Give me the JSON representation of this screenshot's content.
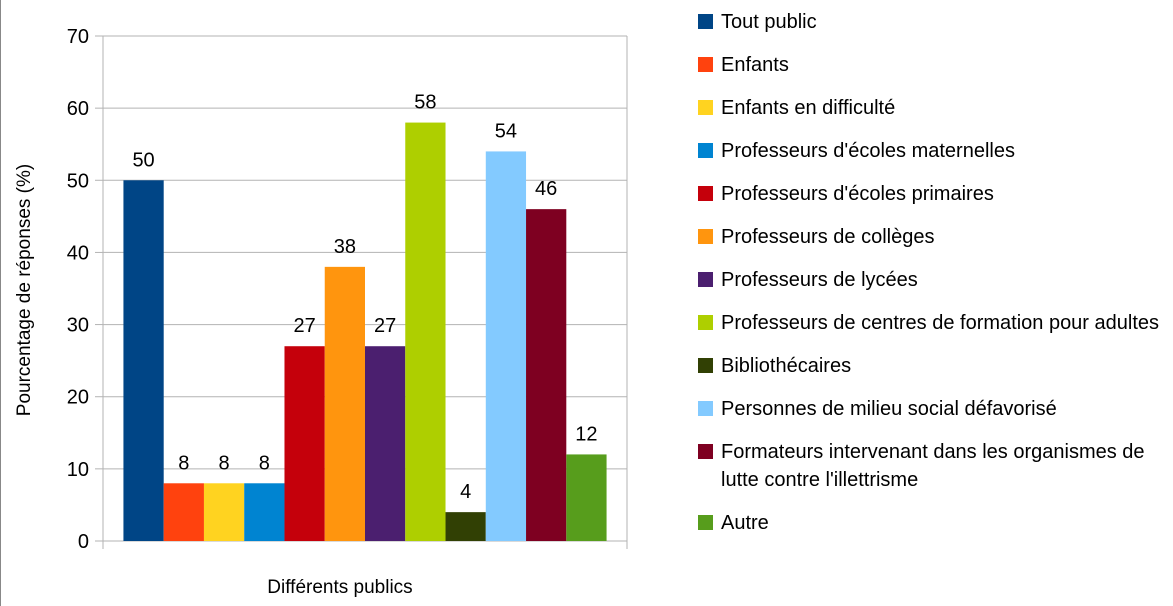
{
  "chart_data": {
    "type": "bar",
    "categories": [
      "Différents publics"
    ],
    "x_label": "Différents publics",
    "y_label": "Pourcentage de réponses (%)",
    "ylim": [
      0,
      70
    ],
    "yticks": [
      0,
      10,
      20,
      30,
      40,
      50,
      60,
      70
    ],
    "grid": true,
    "legend": "right",
    "series": [
      {
        "name": "Tout public",
        "color": "#004586",
        "values": [
          50
        ]
      },
      {
        "name": "Enfants",
        "color": "#ff420e",
        "values": [
          8
        ]
      },
      {
        "name": "Enfants en difficulté",
        "color": "#ffd320",
        "values": [
          8
        ]
      },
      {
        "name": "Professeurs d'écoles maternelles",
        "color": "#0084d1",
        "values": [
          8
        ]
      },
      {
        "name": "Professeurs d'écoles primaires",
        "color": "#c5000b",
        "values": [
          27
        ]
      },
      {
        "name": "Professeurs de collèges",
        "color": "#ff950e",
        "values": [
          38
        ]
      },
      {
        "name": "Professeurs de lycées",
        "color": "#4b1f6f",
        "values": [
          27
        ]
      },
      {
        "name": "Professeurs de centres de formation pour adultes",
        "color": "#aecf00",
        "values": [
          58
        ]
      },
      {
        "name": "Bibliothécaires",
        "color": "#314004",
        "values": [
          4
        ]
      },
      {
        "name": "Personnes de milieu social défavorisé",
        "color": "#83caff",
        "values": [
          54
        ]
      },
      {
        "name": "Formateurs intervenant dans les organismes de lutte contre l'illettrisme",
        "color": "#7e0021",
        "values": [
          46
        ]
      },
      {
        "name": "Autre",
        "color": "#579d1c",
        "values": [
          12
        ]
      }
    ]
  }
}
